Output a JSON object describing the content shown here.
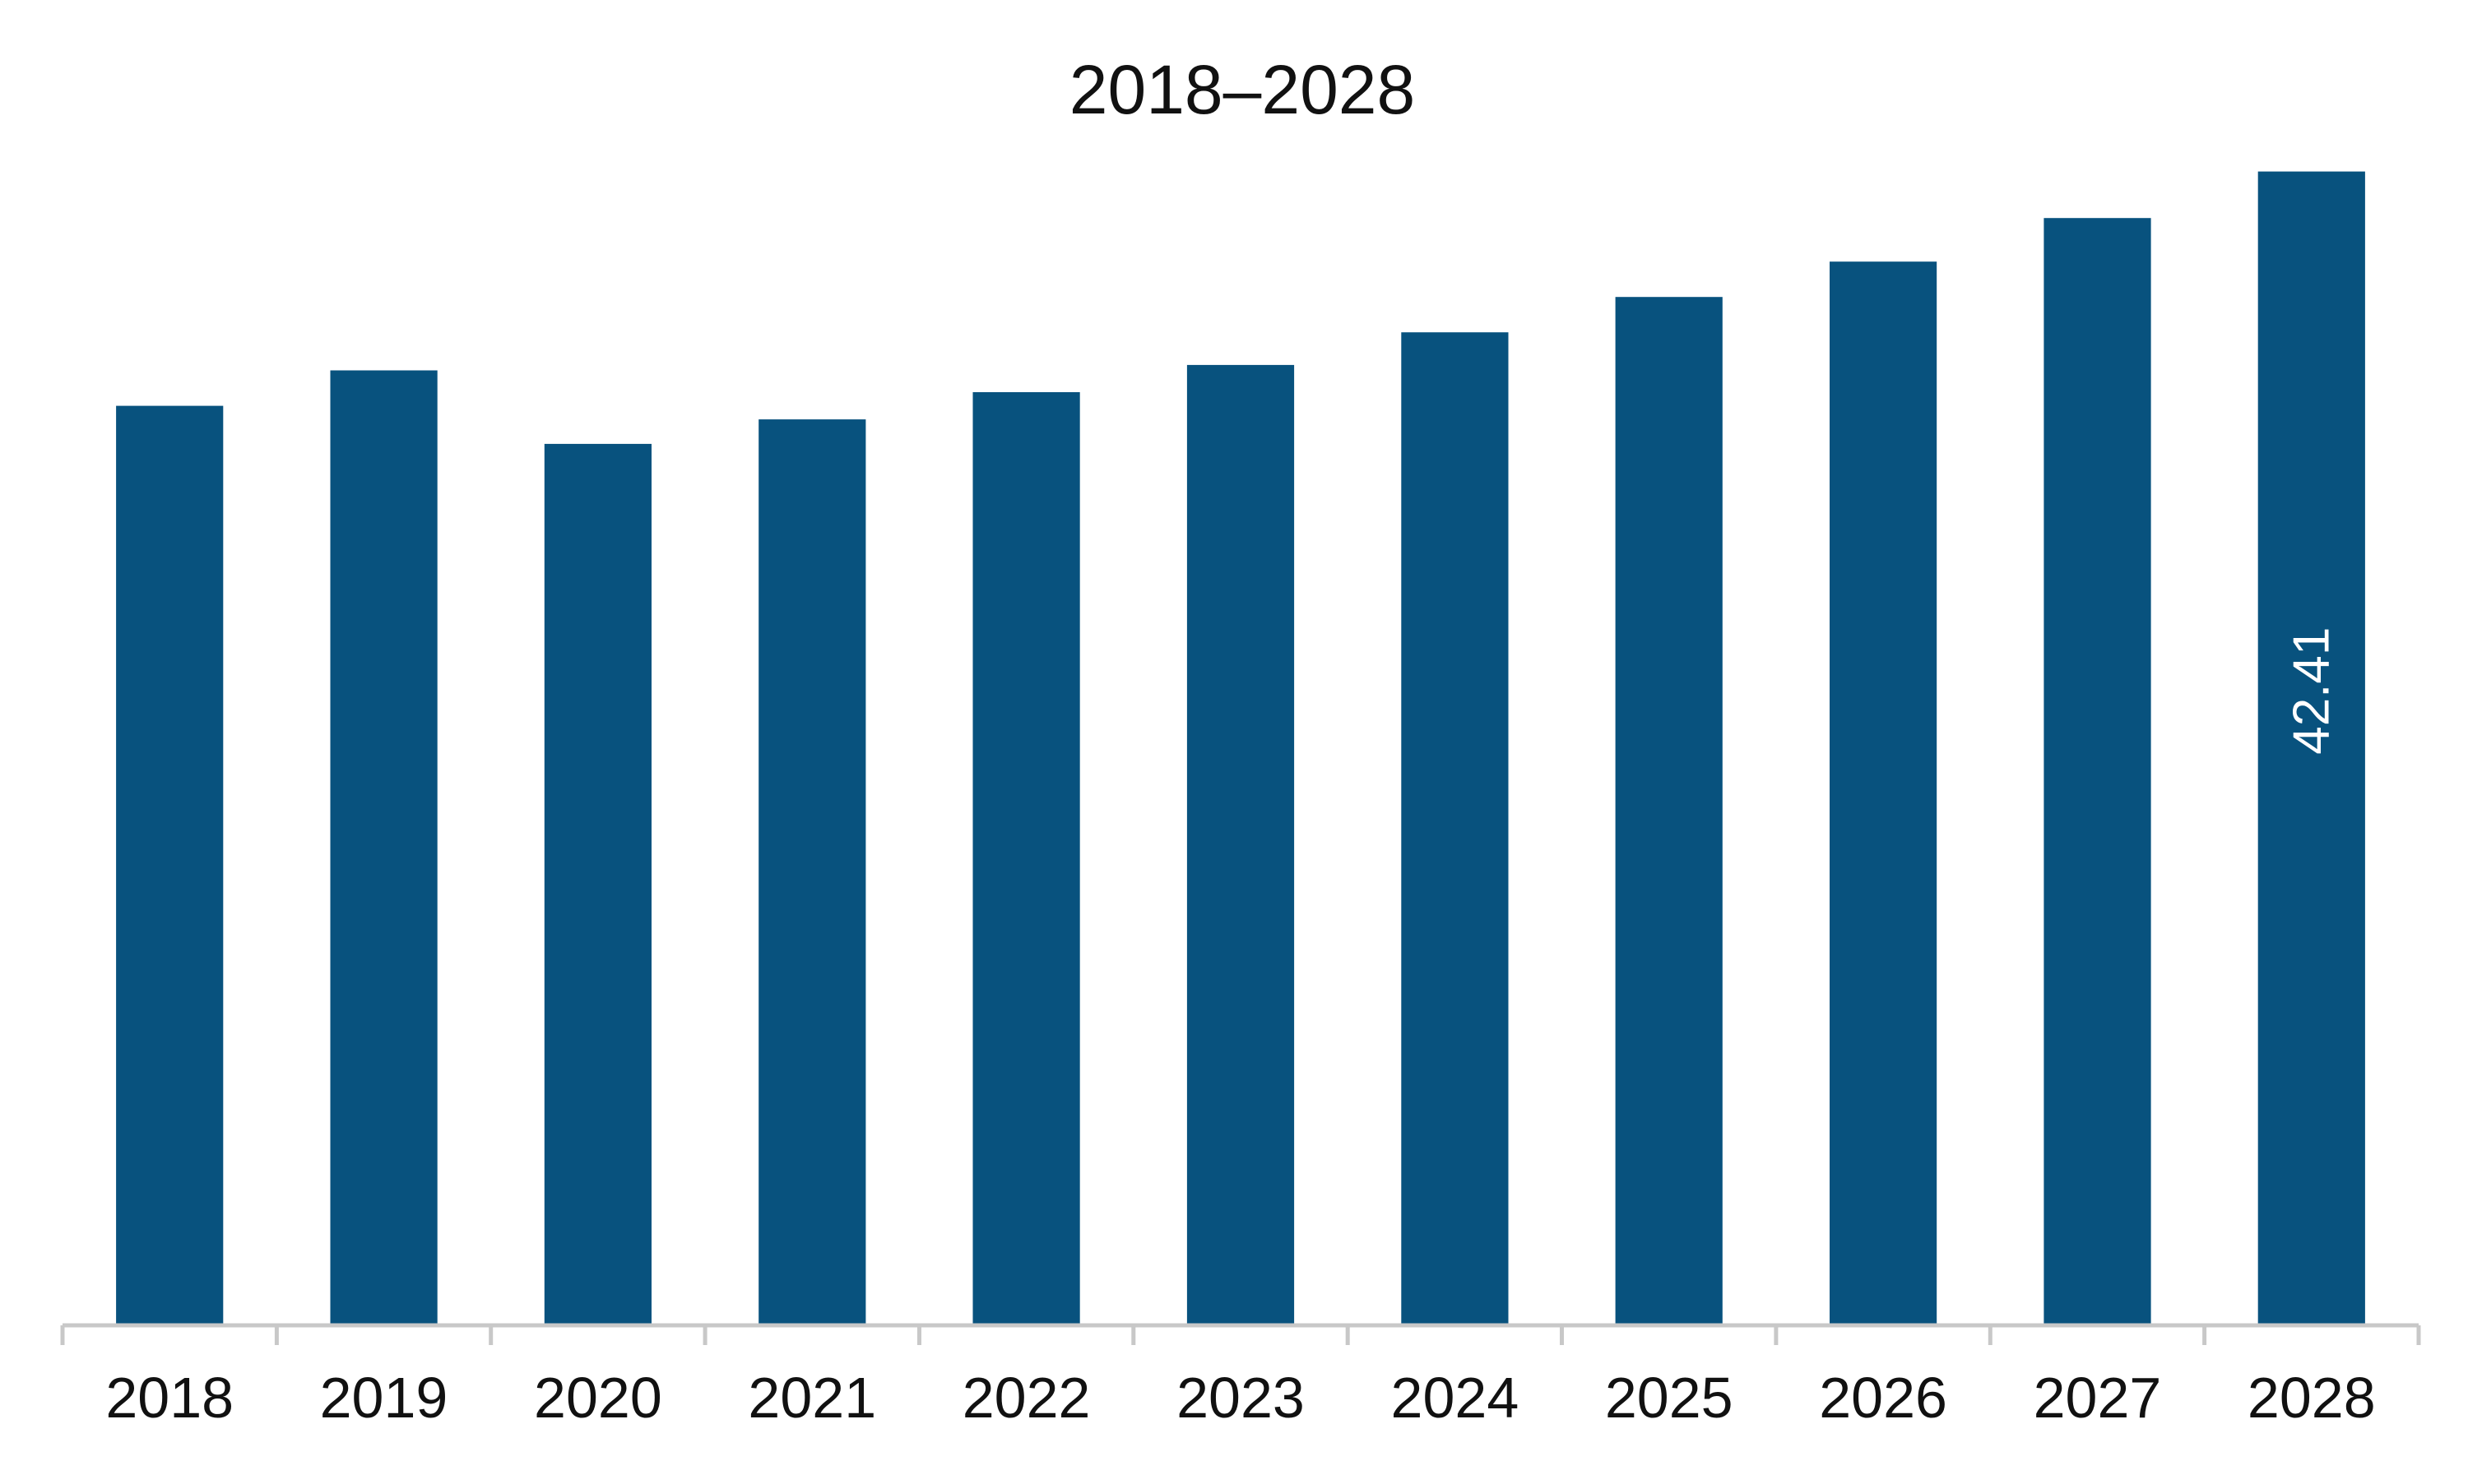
{
  "chart_data": {
    "type": "bar",
    "title": "2018–2028",
    "xlabel": "",
    "ylabel": "",
    "categories": [
      "2018",
      "2019",
      "2020",
      "2021",
      "2022",
      "2023",
      "2024",
      "2025",
      "2026",
      "2027",
      "2028"
    ],
    "series": [
      {
        "values": [
          33.8,
          35.1,
          32.4,
          33.3,
          34.3,
          35.3,
          36.5,
          37.8,
          39.1,
          40.7,
          42.41
        ],
        "color": "#08527e"
      }
    ],
    "data_labels": [
      {
        "category": "2028",
        "text": "42.41",
        "orientation": "vertical"
      }
    ],
    "ylim": [
      0,
      46.6
    ],
    "grid": false,
    "legend": "none",
    "y_axis_visible": false
  }
}
